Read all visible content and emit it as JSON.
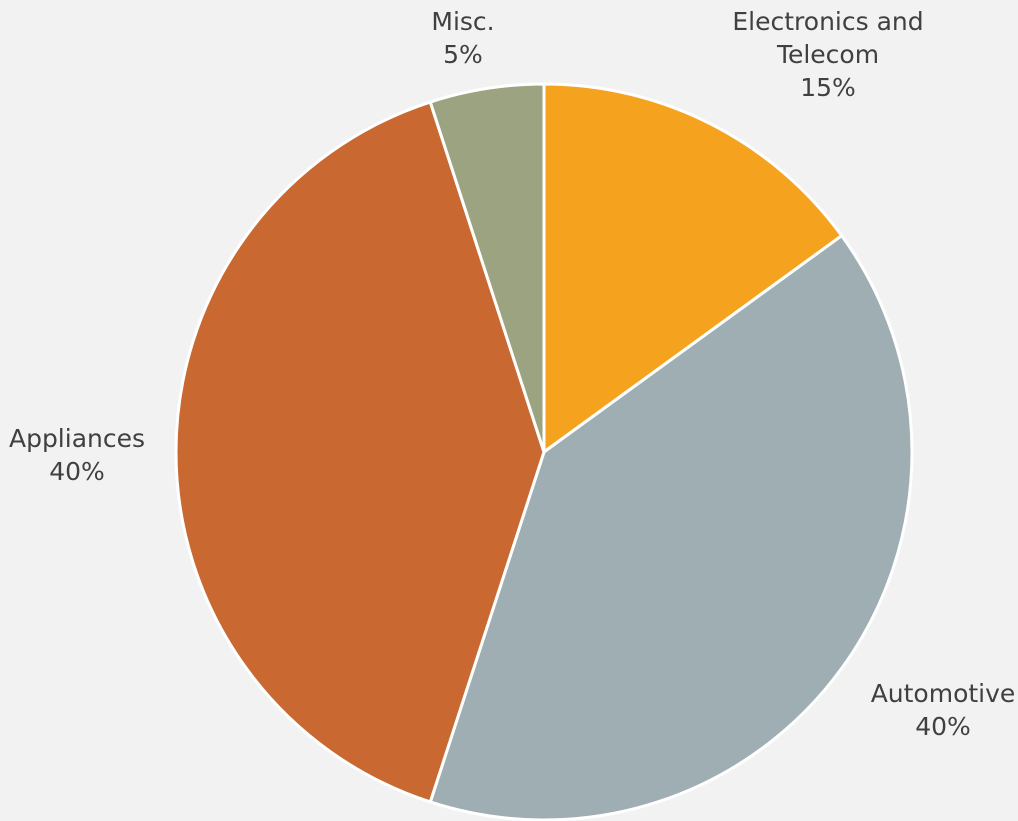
{
  "chart_data": {
    "type": "pie",
    "title": "",
    "start_angle_deg": 0,
    "direction": "clockwise",
    "slices": [
      {
        "name": "Electronics and Telecom",
        "label_lines": [
          "Electronics and",
          "Telecom"
        ],
        "value": 15,
        "value_label": "15%",
        "color": "#f5a31f"
      },
      {
        "name": "Automotive",
        "label_lines": [
          "Automotive"
        ],
        "value": 40,
        "value_label": "40%",
        "color": "#9eaeb3"
      },
      {
        "name": "Appliances",
        "label_lines": [
          "Appliances"
        ],
        "value": 40,
        "value_label": "40%",
        "color": "#c96830"
      },
      {
        "name": "Misc.",
        "label_lines": [
          "Misc."
        ],
        "value": 5,
        "value_label": "5%",
        "color": "#9ca380"
      }
    ],
    "background": "#f2f2f2",
    "slice_border_color": "#ffffff",
    "label_color": "#404040"
  }
}
